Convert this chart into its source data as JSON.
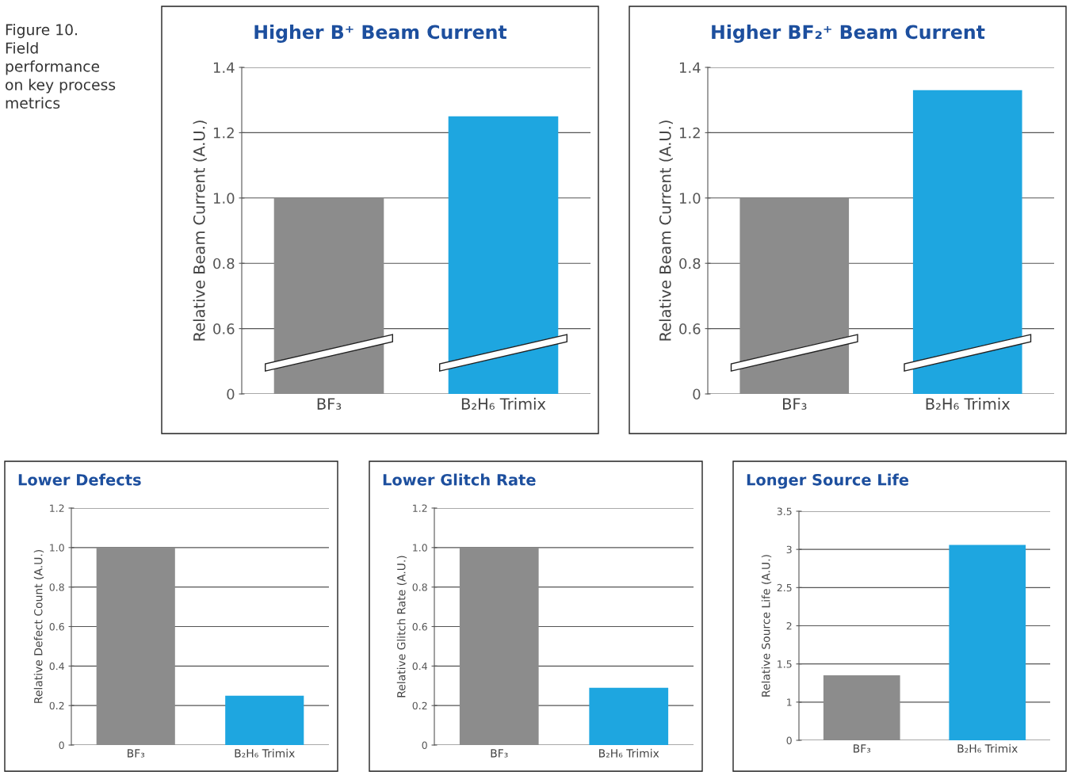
{
  "chart_data": [
    {
      "type": "bar",
      "title": "Higher B⁺ Beam Current",
      "ylabel": "Relative Beam Current (A.U.)",
      "categories": [
        "BF₃",
        "B₂H₆ Trimix"
      ],
      "values": [
        1.0,
        1.25
      ],
      "colors": [
        "#8c8c8c",
        "#1ea6e0"
      ],
      "ylim": [
        0.4,
        1.4
      ],
      "yticks": [
        {
          "value": 0.4,
          "label": "0"
        },
        0.6,
        0.8,
        {
          "value": 1.0,
          "label": "1.0"
        },
        1.2,
        1.4
      ],
      "grid": "y",
      "annotations": [
        "Figure 10.\nField\nperformance\non key process\nmetrics"
      ]
    },
    {
      "type": "bar",
      "title": "Higher BF₂⁺ Beam Current",
      "ylabel": "Relative Beam Current (A.U.)",
      "categories": [
        "BF₃",
        "B₂H₆ Trimix"
      ],
      "values": [
        1.0,
        1.33
      ],
      "colors": [
        "#8c8c8c",
        "#1ea6e0"
      ],
      "ylim": [
        0.4,
        1.4
      ],
      "yticks": [
        {
          "value": 0.4,
          "label": "0"
        },
        0.6,
        0.8,
        {
          "value": 1.0,
          "label": "1.0"
        },
        1.2,
        1.4
      ],
      "grid": "y"
    },
    {
      "type": "bar",
      "title": "Lower Defects",
      "ylabel": "Relative Defect Count (A.U.)",
      "categories": [
        "BF₃",
        "B₂H₆ Trimix"
      ],
      "values": [
        1.0,
        0.25
      ],
      "colors": [
        "#8c8c8c",
        "#1ea6e0"
      ],
      "ylim": [
        0,
        1.2
      ],
      "yticks": [
        0,
        0.2,
        0.4,
        0.6,
        0.8,
        {
          "value": 1.0,
          "label": "1.0"
        },
        1.2
      ],
      "grid": "y"
    },
    {
      "type": "bar",
      "title": "Lower Glitch Rate",
      "ylabel": "Relative Glitch Rate (A.U.)",
      "categories": [
        "BF₃",
        "B₂H₆ Trimix"
      ],
      "values": [
        1.0,
        0.29
      ],
      "colors": [
        "#8c8c8c",
        "#1ea6e0"
      ],
      "ylim": [
        0,
        1.2
      ],
      "yticks": [
        0,
        0.2,
        0.4,
        0.6,
        0.8,
        {
          "value": 1.0,
          "label": "1.0"
        },
        1.2
      ],
      "grid": "y"
    },
    {
      "type": "bar",
      "title": "Longer Source Life",
      "ylabel": "Relative Source Life (A.U.)",
      "categories": [
        "BF₃",
        "B₂H₆ Trimix"
      ],
      "values": [
        1.35,
        3.06
      ],
      "colors": [
        "#8c8c8c",
        "#1ea6e0"
      ],
      "ylim": [
        0.5,
        3.5
      ],
      "yticks": [
        {
          "value": 0.5,
          "label": "0"
        },
        1,
        1.5,
        2,
        2.5,
        3,
        3.5
      ],
      "grid": "y"
    }
  ]
}
